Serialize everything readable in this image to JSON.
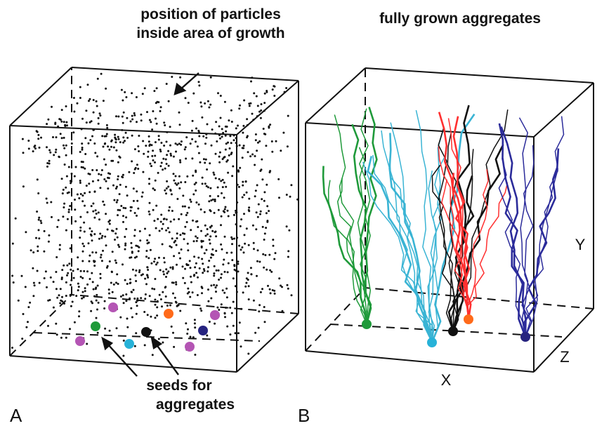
{
  "panel_a": {
    "letter": "A",
    "annotation_top_line1": "position of particles",
    "annotation_top_line2": "inside area of growth",
    "annotation_bottom_line1": "seeds for",
    "annotation_bottom_line2": "aggregates",
    "particle_color": "#111111",
    "seed_colors": [
      "#b455b4",
      "#b455b4",
      "#1f9a3a",
      "#ff6a1a",
      "#b455b4",
      "#27b2d8",
      "#111111",
      "#26237f",
      "#b455b4",
      "#b455b4"
    ]
  },
  "panel_b": {
    "letter": "B",
    "title": "fully grown aggregates",
    "axis_x": "X",
    "axis_y": "Y",
    "axis_z": "Z",
    "aggregate_colors": [
      "#1f9a3a",
      "#3ab4d4",
      "#111111",
      "#ff3030",
      "#2b2b9a"
    ],
    "seed_colors": [
      "#1f9a3a",
      "#27b2d8",
      "#111111",
      "#ff6a1a",
      "#26237f"
    ]
  }
}
